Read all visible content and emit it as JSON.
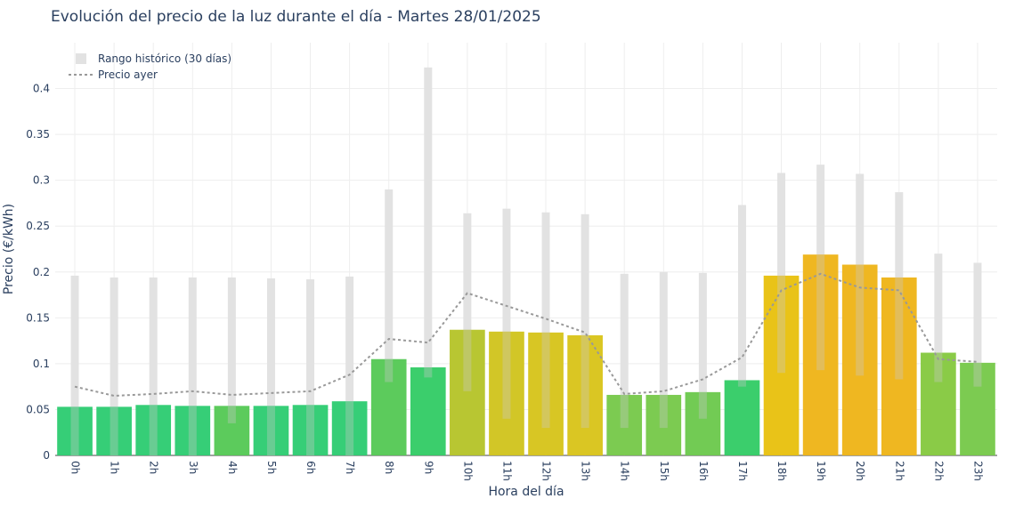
{
  "chart_data": {
    "type": "bar",
    "title": "Evolución del precio de la luz durante el día - Martes 28/01/2025",
    "xlabel": "Hora del día",
    "ylabel": "Precio (€/kWh)",
    "ylim": [
      0,
      0.45
    ],
    "yticks": [
      0,
      0.05,
      0.1,
      0.15,
      0.2,
      0.25,
      0.3,
      0.35,
      0.4
    ],
    "ytick_labels": [
      "0",
      "0.05",
      "0.1",
      "0.15",
      "0.2",
      "0.25",
      "0.3",
      "0.35",
      "0.4"
    ],
    "grid": true,
    "legend_position": "top-left",
    "categories": [
      "0h",
      "1h",
      "2h",
      "3h",
      "4h",
      "5h",
      "6h",
      "7h",
      "8h",
      "9h",
      "10h",
      "11h",
      "12h",
      "13h",
      "14h",
      "15h",
      "16h",
      "17h",
      "18h",
      "19h",
      "20h",
      "21h",
      "22h",
      "23h"
    ],
    "values": [
      0.053,
      0.053,
      0.055,
      0.054,
      0.054,
      0.054,
      0.055,
      0.059,
      0.105,
      0.096,
      0.137,
      0.135,
      0.134,
      0.131,
      0.066,
      0.066,
      0.069,
      0.082,
      0.196,
      0.219,
      0.208,
      0.194,
      0.112,
      0.101
    ],
    "bar_colors": [
      "#2ecc71",
      "#2ecc71",
      "#2ecc71",
      "#2ecc71",
      "#55c955",
      "#2ecc71",
      "#2ecc71",
      "#2ecc71",
      "#55c955",
      "#33cc66",
      "#b5c42a",
      "#d0c41e",
      "#d6c41b",
      "#d9c41a",
      "#77c94a",
      "#77c94a",
      "#6cc94d",
      "#33cc66",
      "#e8c10f",
      "#eeb418",
      "#eeb418",
      "#eeb418",
      "#85c93f",
      "#77c94a"
    ],
    "series": [
      {
        "name": "Rango histórico (30 días)",
        "type": "range",
        "color": "#e2e2e2",
        "low": [
          0.0,
          0.0,
          0.0,
          0.0,
          0.035,
          0.0,
          0.0,
          0.0,
          0.08,
          0.085,
          0.07,
          0.04,
          0.03,
          0.03,
          0.03,
          0.03,
          0.04,
          0.075,
          0.09,
          0.093,
          0.087,
          0.083,
          0.08,
          0.075
        ],
        "high": [
          0.196,
          0.194,
          0.194,
          0.194,
          0.194,
          0.193,
          0.192,
          0.195,
          0.29,
          0.423,
          0.264,
          0.269,
          0.265,
          0.263,
          0.198,
          0.2,
          0.199,
          0.273,
          0.308,
          0.317,
          0.307,
          0.287,
          0.22,
          0.21
        ]
      },
      {
        "name": "Precio ayer",
        "type": "line",
        "color": "#999999",
        "values": [
          0.075,
          0.065,
          0.067,
          0.07,
          0.066,
          0.068,
          0.07,
          0.088,
          0.127,
          0.123,
          0.177,
          0.163,
          0.149,
          0.134,
          0.067,
          0.07,
          0.083,
          0.107,
          0.18,
          0.198,
          0.183,
          0.18,
          0.105,
          0.102
        ]
      }
    ]
  }
}
